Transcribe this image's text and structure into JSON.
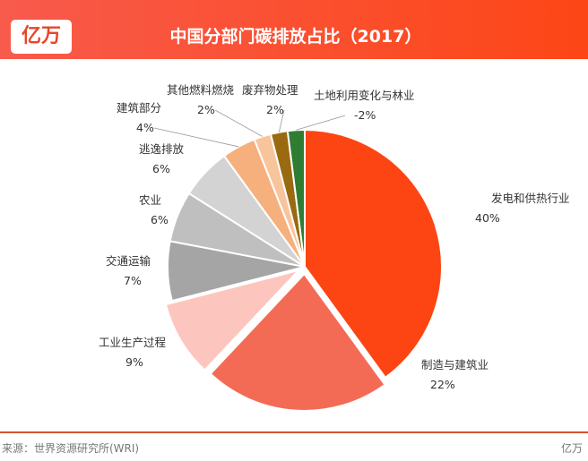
{
  "header": {
    "logo": "亿万",
    "title": "中国分部门碳排放占比（2017）"
  },
  "chart_data": {
    "type": "pie",
    "title": "中国分部门碳排放占比（2017）",
    "categories": [
      "发电和供热行业",
      "制造与建筑业",
      "工业生产过程",
      "交通运输",
      "农业",
      "逃逸排放",
      "建筑部分",
      "其他燃料燃烧",
      "废弃物处理",
      "土地利用变化与林业"
    ],
    "values": [
      40,
      22,
      9,
      7,
      6,
      6,
      4,
      2,
      2,
      -2
    ],
    "labels": [
      "40%",
      "22%",
      "9%",
      "7%",
      "6%",
      "6%",
      "4%",
      "2%",
      "2%",
      "-2%"
    ],
    "colors": [
      "#fc4513",
      "#f46b55",
      "#fcc6be",
      "#a5a5a5",
      "#bfbfbf",
      "#d3d3d3",
      "#f5b07e",
      "#f8c49c",
      "#9a6a10",
      "#2f7d32"
    ],
    "exploded": [
      false,
      true,
      true,
      false,
      false,
      false,
      false,
      false,
      false,
      false
    ],
    "start": "top",
    "direction": "clockwise"
  },
  "footer": {
    "source": "来源：世界资源研究所(WRI)",
    "brand": "亿万"
  }
}
